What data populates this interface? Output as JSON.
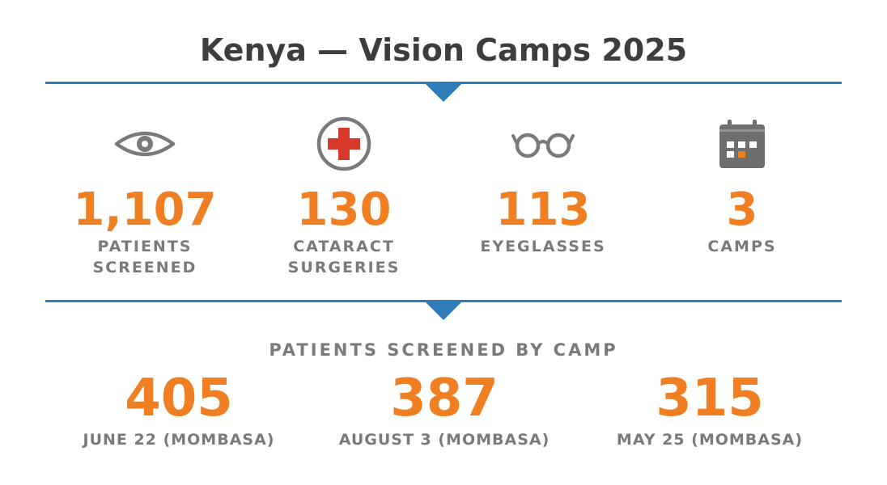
{
  "title": "Kenya — Vision Camps 2025",
  "colors": {
    "accent": "#ef7f22",
    "divider": "#2e7cb8",
    "text": "#7a7a7a",
    "title": "#3d3d3d",
    "cross": "#d9392b"
  },
  "stats": [
    {
      "icon": "eye-icon",
      "value": "1,107",
      "label": "PATIENTS\nSCREENED"
    },
    {
      "icon": "medical-cross-icon",
      "value": "130",
      "label": "CATARACT\nSURGERIES"
    },
    {
      "icon": "eyeglasses-icon",
      "value": "113",
      "label": "EYEGLASSES"
    },
    {
      "icon": "calendar-icon",
      "value": "3",
      "label": "CAMPS"
    }
  ],
  "section_title": "PATIENTS SCREENED BY CAMP",
  "camps": [
    {
      "value": "405",
      "label": "JUNE 22 (MOMBASA)"
    },
    {
      "value": "387",
      "label": "AUGUST 3 (MOMBASA)"
    },
    {
      "value": "315",
      "label": "MAY 25 (MOMBASA)"
    }
  ]
}
